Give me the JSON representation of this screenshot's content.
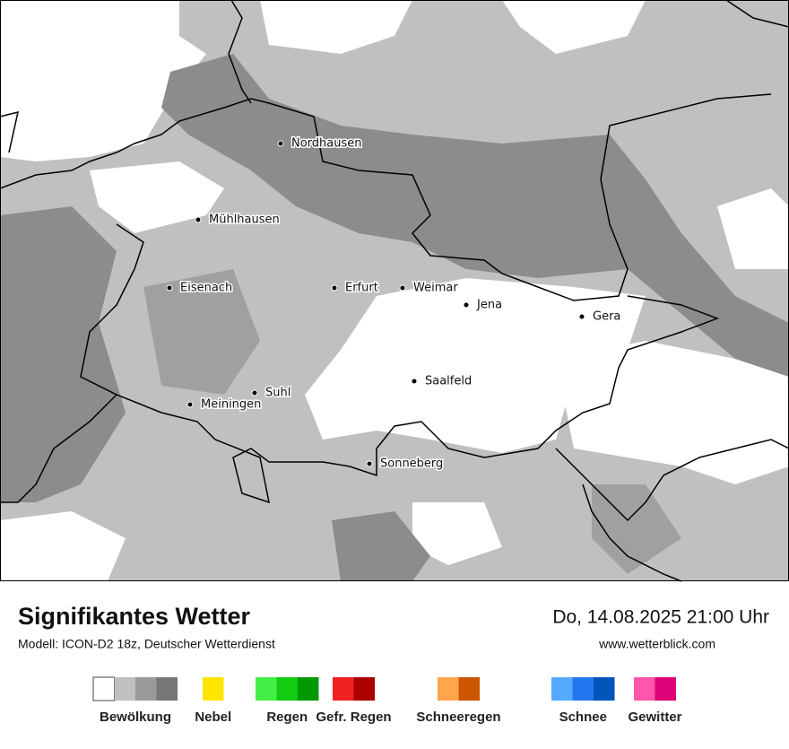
{
  "map": {
    "cities": [
      "Nordhausen",
      "Mühlhausen",
      "Eisenach",
      "Erfurt",
      "Weimar",
      "Jena",
      "Gera",
      "Saalfeld",
      "Suhl",
      "Meiningen",
      "Sonneberg"
    ]
  },
  "footer": {
    "title": "Signifikantes Wetter",
    "subtitle": "Modell: ICON-D2 18z, Deutscher Wetterdienst",
    "datetime": "Do, 14.08.2025 21:00 Uhr",
    "website": "www.wetterblick.com"
  },
  "legend": [
    {
      "label": "Bewölkung",
      "colors": [
        "#ffffff",
        "#c0c0c0",
        "#999999",
        "#777777"
      ]
    },
    {
      "label": "Nebel",
      "colors": [
        "#ffe600"
      ]
    },
    {
      "label": "Regen",
      "colors": [
        "#44ee44",
        "#11cc11",
        "#009900"
      ]
    },
    {
      "label": "Gefr. Regen",
      "colors": [
        "#ee2222",
        "#aa0000"
      ]
    },
    {
      "label": "Schneeregen",
      "colors": [
        "#ffa64d",
        "#cc5500"
      ]
    },
    {
      "label": "Schnee",
      "colors": [
        "#55aaff",
        "#2277ee",
        "#0055bb"
      ]
    },
    {
      "label": "Gewitter",
      "colors": [
        "#ff55aa",
        "#dd0077"
      ]
    }
  ]
}
